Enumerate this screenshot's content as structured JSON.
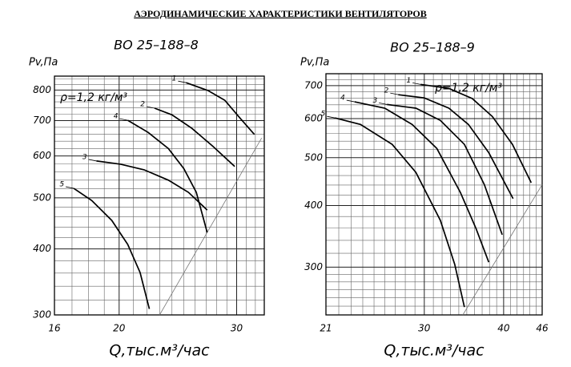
{
  "header": "АЭРОДИНАМИЧЕСКИЕ ХАРАКТЕРИСТИКИ ВЕНТИЛЯТОРОВ",
  "chart_data": [
    {
      "type": "line",
      "title": "ВО 25–188–8",
      "y_label": "Pv,Па",
      "x_label": "Q,тыс.м³/час",
      "annotation": "ρ=1,2 кг/м³",
      "xscale": "log",
      "yscale": "log",
      "grid": true,
      "xlim": [
        16,
        33
      ],
      "ylim": [
        300,
        850
      ],
      "xticks": [
        16,
        20,
        30
      ],
      "yticks": [
        300,
        400,
        500,
        600,
        700,
        800
      ],
      "xgrid": [
        17,
        18,
        19,
        21,
        22,
        23,
        24,
        25,
        26,
        27,
        28,
        29,
        31,
        32,
        33
      ],
      "ygrid": [
        320,
        340,
        360,
        380,
        420,
        440,
        460,
        480,
        520,
        540,
        560,
        580,
        620,
        640,
        660,
        680,
        720,
        740,
        760,
        780,
        820,
        840
      ],
      "series": [
        {
          "name": "1",
          "color": "#000000",
          "x": [
            25.2,
            27.2,
            28.8,
            30.4,
            31.9
          ],
          "values": [
            826,
            798,
            765,
            706,
            659
          ]
        },
        {
          "name": "2",
          "color": "#000000",
          "x": [
            22.6,
            24.0,
            25.7,
            27.6,
            29.8
          ],
          "values": [
            739,
            718,
            677,
            627,
            573
          ]
        },
        {
          "name": "4",
          "color": "#000000",
          "x": [
            20.6,
            22.1,
            23.7,
            25.0,
            26.1,
            27.1
          ],
          "values": [
            701,
            665,
            620,
            568,
            512,
            430
          ]
        },
        {
          "name": "3",
          "color": "#000000",
          "x": [
            18.5,
            20.1,
            21.8,
            23.7,
            25.4,
            27.1
          ],
          "values": [
            587,
            579,
            565,
            540,
            512,
            474
          ]
        },
        {
          "name": "5",
          "color": "#000000",
          "x": [
            17.1,
            18.2,
            19.5,
            20.6,
            21.5,
            22.2
          ],
          "values": [
            521,
            494,
            453,
            408,
            361,
            308
          ]
        }
      ],
      "limit_line": {
        "color": "#777777",
        "x": [
          23.0,
          32.7
        ],
        "values": [
          300,
          649
        ]
      }
    },
    {
      "type": "line",
      "title": "ВО 25–188–9",
      "y_label": "Pv,Па",
      "x_label": "Q,тыс.м³/час",
      "annotation": "ρ=1,2 кг/м³",
      "xscale": "log",
      "yscale": "log",
      "grid": true,
      "xlim": [
        21,
        46
      ],
      "ylim": [
        240,
        740
      ],
      "xticks": [
        21,
        30,
        40,
        46
      ],
      "yticks": [
        300,
        400,
        500,
        600,
        700
      ],
      "xgrid": [
        22,
        23,
        24,
        25,
        26,
        27,
        28,
        29,
        31,
        32,
        33,
        34,
        35,
        36,
        37,
        38,
        39,
        41,
        42,
        43,
        44,
        45
      ],
      "ygrid": [
        250,
        260,
        270,
        280,
        290,
        320,
        340,
        360,
        380,
        420,
        440,
        460,
        480,
        520,
        540,
        560,
        580,
        620,
        640,
        660,
        680,
        720
      ],
      "series": [
        {
          "name": "1",
          "color": "#000000",
          "x": [
            29.6,
            32.8,
            35.7,
            38.4,
            41.3,
            44.2
          ],
          "values": [
            704,
            691,
            659,
            606,
            532,
            445
          ]
        },
        {
          "name": "2",
          "color": "#000000",
          "x": [
            27.3,
            30.0,
            32.8,
            35.2,
            37.9,
            41.4
          ],
          "values": [
            671,
            661,
            630,
            584,
            512,
            413
          ]
        },
        {
          "name": "3",
          "color": "#000000",
          "x": [
            26.2,
            29.1,
            31.8,
            34.7,
            37.3,
            39.8
          ],
          "values": [
            641,
            630,
            595,
            532,
            441,
            349
          ]
        },
        {
          "name": "4",
          "color": "#000000",
          "x": [
            23.3,
            26.0,
            28.7,
            31.4,
            34.2,
            36.2,
            37.9
          ],
          "values": [
            649,
            630,
            584,
            522,
            425,
            359,
            307
          ]
        },
        {
          "name": "5",
          "color": "#000000",
          "x": [
            21.7,
            23.8,
            26.7,
            29.1,
            31.8,
            33.5,
            34.7
          ],
          "values": [
            602,
            584,
            532,
            467,
            373,
            304,
            249
          ]
        }
      ],
      "limit_line": {
        "color": "#777777",
        "x": [
          34.5,
          46
        ],
        "values": [
          240,
          441
        ]
      }
    }
  ]
}
